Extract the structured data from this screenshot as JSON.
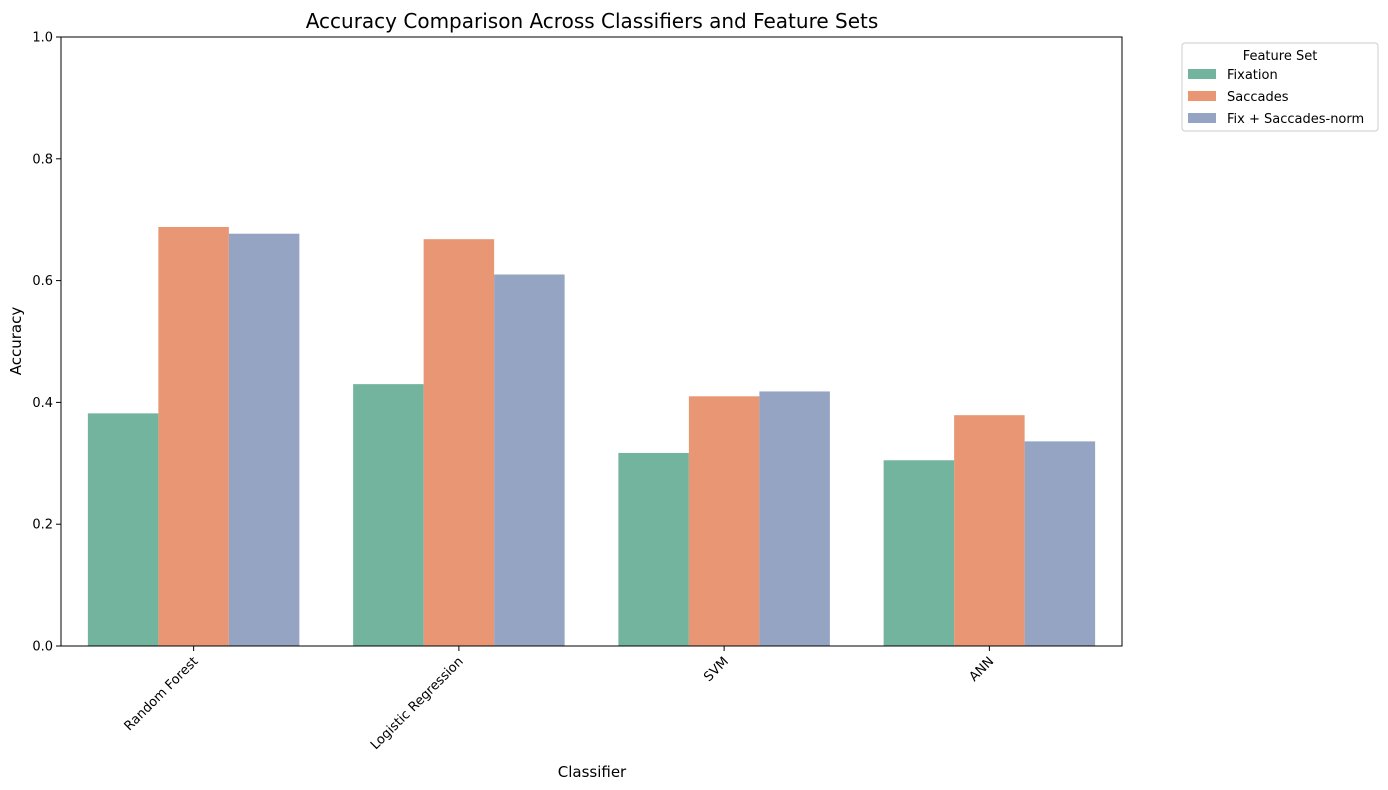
{
  "chart_data": {
    "type": "bar",
    "title": "Accuracy Comparison Across Classifiers and Feature Sets",
    "xlabel": "Classifier",
    "ylabel": "Accuracy",
    "ylim": [
      0,
      1.0
    ],
    "yticks": [
      "0.0",
      "0.2",
      "0.4",
      "0.6",
      "0.8",
      "1.0"
    ],
    "categories": [
      "Random Forest",
      "Logistic Regression",
      "SVM",
      "ANN"
    ],
    "series": [
      {
        "name": "Fixation",
        "color": "#73b49f",
        "values": [
          0.382,
          0.43,
          0.317,
          0.305
        ]
      },
      {
        "name": "Saccades",
        "color": "#e89673",
        "values": [
          0.688,
          0.668,
          0.41,
          0.379
        ]
      },
      {
        "name": "Fix + Saccades-norm",
        "color": "#95a4c2",
        "values": [
          0.677,
          0.61,
          0.418,
          0.336
        ]
      }
    ],
    "legend": {
      "title": "Feature Set",
      "placement": "outside-top-right"
    },
    "grid": false
  }
}
